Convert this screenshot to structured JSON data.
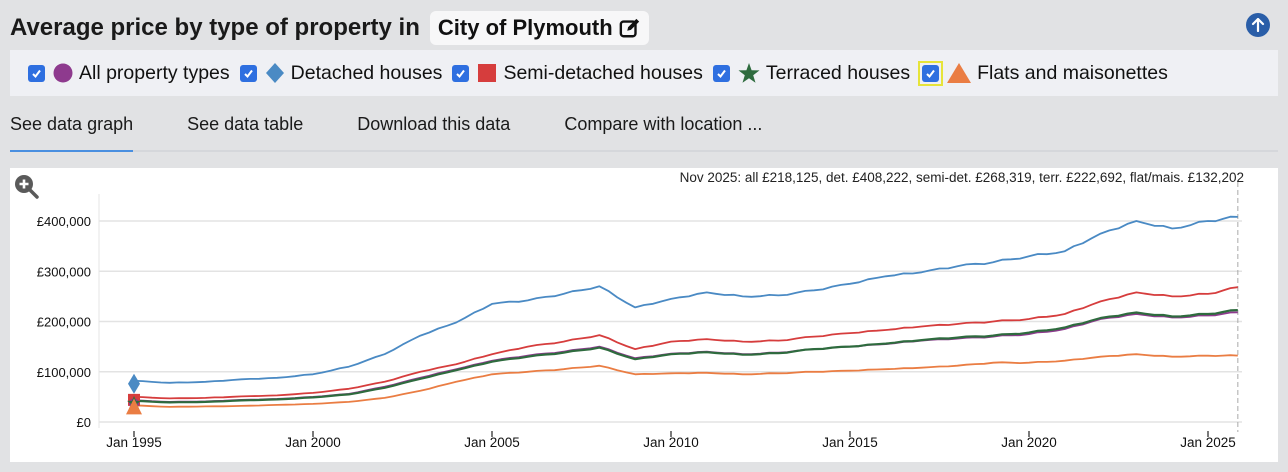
{
  "header": {
    "title": "Average price by type of property in",
    "location": "City of Plymouth",
    "edit_icon": "edit-icon",
    "scroll_top_icon": "arrow-up-circle-icon"
  },
  "legend": {
    "items": [
      {
        "label": "All property types",
        "symbol": "circle",
        "color": "#8e3a8e",
        "checked": true
      },
      {
        "label": "Detached houses",
        "symbol": "diamond",
        "color": "#4a8ac4",
        "checked": true
      },
      {
        "label": "Semi-detached houses",
        "symbol": "square",
        "color": "#d63d3d",
        "checked": true
      },
      {
        "label": "Terraced houses",
        "symbol": "star",
        "color": "#2e6b3e",
        "checked": true
      },
      {
        "label": "Flats and maisonettes",
        "symbol": "triangle",
        "color": "#ea7d43",
        "checked": true
      }
    ]
  },
  "tabs": [
    {
      "label": "See data graph",
      "active": true
    },
    {
      "label": "See data table",
      "active": false
    },
    {
      "label": "Download this data",
      "active": false
    },
    {
      "label": "Compare with location ...",
      "active": false
    }
  ],
  "chart_summary": "Nov 2025: all £218,125, det. £408,222, semi-det. £268,319, terr. £222,692, flat/mais. £132,202",
  "chart_data": {
    "type": "line",
    "title": "Average price by type of property in City of Plymouth",
    "xlabel": "",
    "ylabel": "",
    "x_ticks": [
      "Jan 1995",
      "Jan 2000",
      "Jan 2005",
      "Jan 2010",
      "Jan 2015",
      "Jan 2020",
      "Jan 2025"
    ],
    "y_ticks": [
      "£0",
      "£100,000",
      "£200,000",
      "£300,000",
      "£400,000"
    ],
    "ylim": [
      0,
      400000
    ],
    "grid": true,
    "legend_position": "top",
    "x": [
      "1995",
      "1996",
      "1997",
      "1998",
      "1999",
      "2000",
      "2001",
      "2002",
      "2003",
      "2004",
      "2005",
      "2006",
      "2007",
      "2008",
      "2009",
      "2010",
      "2011",
      "2012",
      "2013",
      "2014",
      "2015",
      "2016",
      "2017",
      "2018",
      "2019",
      "2020",
      "2021",
      "2022",
      "2023",
      "2024",
      "2025",
      "Nov 2025"
    ],
    "series": [
      {
        "name": "Detached houses",
        "color": "#4a8ac4",
        "values": [
          82000,
          78000,
          80000,
          85000,
          88000,
          95000,
          110000,
          135000,
          172000,
          198000,
          235000,
          242000,
          255000,
          270000,
          228000,
          245000,
          258000,
          250000,
          252000,
          262000,
          275000,
          290000,
          298000,
          310000,
          318000,
          330000,
          340000,
          375000,
          400000,
          385000,
          400000,
          408222
        ]
      },
      {
        "name": "Semi-detached houses",
        "color": "#d63d3d",
        "values": [
          50000,
          47000,
          48000,
          51000,
          53000,
          58000,
          66000,
          80000,
          100000,
          115000,
          135000,
          150000,
          160000,
          173000,
          145000,
          160000,
          165000,
          160000,
          162000,
          170000,
          177000,
          183000,
          190000,
          195000,
          200000,
          205000,
          215000,
          240000,
          258000,
          250000,
          255000,
          268319
        ]
      },
      {
        "name": "All property types",
        "color": "#8e3a8e",
        "values": [
          43000,
          40000,
          41000,
          44000,
          46000,
          50000,
          56000,
          70000,
          88000,
          105000,
          122000,
          132000,
          140000,
          150000,
          127000,
          136000,
          140000,
          135000,
          138000,
          145000,
          150000,
          155000,
          162000,
          166000,
          170000,
          175000,
          185000,
          205000,
          215000,
          208000,
          212000,
          218125
        ]
      },
      {
        "name": "Terraced houses",
        "color": "#2e6b3e",
        "values": [
          42000,
          39000,
          40000,
          43000,
          45000,
          49000,
          55000,
          68000,
          86000,
          103000,
          120000,
          130000,
          138000,
          148000,
          125000,
          135000,
          139000,
          134000,
          137000,
          145000,
          150000,
          156000,
          163000,
          168000,
          172000,
          178000,
          188000,
          207000,
          218000,
          210000,
          215000,
          222692
        ]
      },
      {
        "name": "Flats and maisonettes",
        "color": "#ea7d43",
        "values": [
          33000,
          30000,
          31000,
          32000,
          34000,
          36000,
          40000,
          48000,
          62000,
          80000,
          95000,
          100000,
          105000,
          112000,
          95000,
          97000,
          98000,
          95000,
          97000,
          100000,
          102000,
          105000,
          108000,
          112000,
          118000,
          118000,
          122000,
          130000,
          135000,
          130000,
          132000,
          132202
        ]
      }
    ]
  }
}
